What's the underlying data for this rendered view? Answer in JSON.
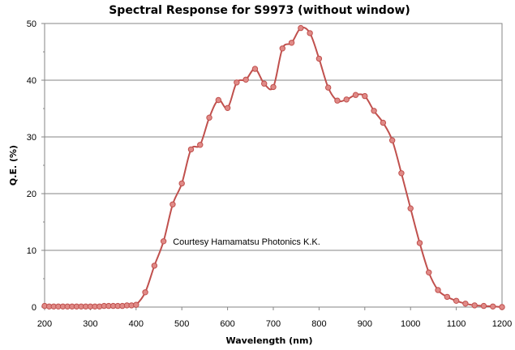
{
  "chart_data": {
    "type": "line",
    "title": "Spectral Response for S9973 (without window)",
    "xlabel": "Wavelength (nm)",
    "ylabel": "Q.E. (%)",
    "xlim": [
      200,
      1200
    ],
    "ylim": [
      0,
      50
    ],
    "xticks": [
      200,
      300,
      400,
      500,
      600,
      700,
      800,
      900,
      1000,
      1100,
      1200
    ],
    "yticks": [
      0,
      10,
      20,
      30,
      40,
      50
    ],
    "xtick_labels": [
      "200",
      "300",
      "400",
      "500",
      "600",
      "700",
      "800",
      "900",
      "1000",
      "1100",
      "1200"
    ],
    "ytick_labels": [
      "0",
      "10",
      "20",
      "30",
      "40",
      "50"
    ],
    "grid": "horizontal",
    "annotation": "Courtesy Hamamatsu Photonics K.K.",
    "series": [
      {
        "color": "#c0504d",
        "marker_fill": "#e08a87",
        "x": [
          200,
          210,
          220,
          230,
          240,
          250,
          260,
          270,
          280,
          290,
          300,
          310,
          320,
          330,
          340,
          350,
          360,
          370,
          380,
          390,
          400,
          420,
          440,
          460,
          480,
          500,
          520,
          540,
          560,
          580,
          600,
          620,
          640,
          660,
          680,
          700,
          720,
          740,
          760,
          780,
          800,
          820,
          840,
          860,
          880,
          900,
          920,
          940,
          960,
          980,
          1000,
          1020,
          1040,
          1060,
          1080,
          1100,
          1120,
          1140,
          1160,
          1180,
          1200
        ],
        "y": [
          0.2,
          0.1,
          0.1,
          0.1,
          0.1,
          0.1,
          0.1,
          0.1,
          0.1,
          0.1,
          0.1,
          0.1,
          0.1,
          0.2,
          0.2,
          0.2,
          0.2,
          0.2,
          0.3,
          0.3,
          0.4,
          2.6,
          7.3,
          11.6,
          18.1,
          21.8,
          27.8,
          28.6,
          33.4,
          36.5,
          35.1,
          39.6,
          40.1,
          42.0,
          39.4,
          38.8,
          45.6,
          46.6,
          49.2,
          48.3,
          43.8,
          38.7,
          36.4,
          36.6,
          37.4,
          37.2,
          34.6,
          32.5,
          29.4,
          23.6,
          17.4,
          11.3,
          6.1,
          3.0,
          1.8,
          1.1,
          0.6,
          0.3,
          0.2,
          0.1,
          0.0
        ]
      }
    ]
  }
}
